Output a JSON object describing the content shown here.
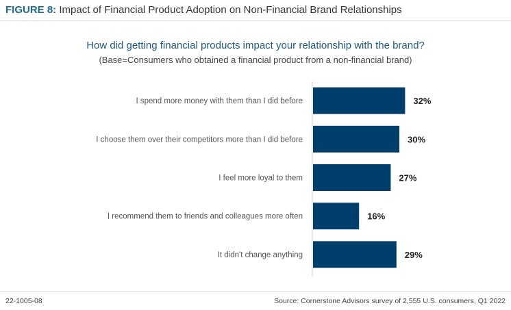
{
  "header": {
    "figure_label": "FIGURE 8:",
    "figure_title": "Impact of Financial Product Adoption on Non-Financial Brand Relationships"
  },
  "footer": {
    "code": "22-1005-08",
    "source": "Source: Cornerstone Advisors survey of 2,555 U.S. consumers, Q1 2022"
  },
  "colors": {
    "bar": "#003f6b",
    "axis": "#cfcfcf",
    "value_label": "#222222",
    "category_label": "#555555"
  },
  "chart_data": {
    "type": "bar",
    "orientation": "horizontal",
    "title": "How did getting financial products impact your relationship with the brand?",
    "subtitle": "(Base=Consumers who obtained a financial product from a non-financial brand)",
    "categories": [
      "I spend more money with them than I did before",
      "I choose them over their competitors more than I did before",
      "I feel more loyal to them",
      "I recommend them to friends and colleagues more often",
      "It didn't change anything"
    ],
    "values": [
      32,
      30,
      27,
      16,
      29
    ],
    "value_labels": [
      "32%",
      "30%",
      "27%",
      "16%",
      "29%"
    ],
    "unit": "%",
    "xlim": [
      0,
      100
    ],
    "grid": false,
    "legend": "none"
  }
}
